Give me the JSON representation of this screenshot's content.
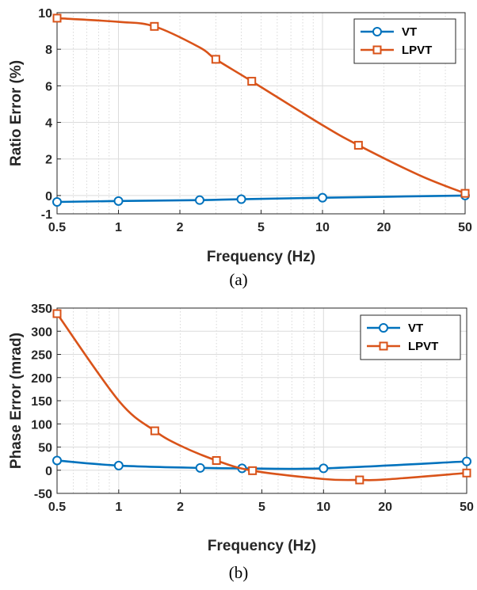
{
  "charts": [
    {
      "id": "a",
      "caption": "(a)",
      "chart_data": {
        "type": "line",
        "xscale": "log",
        "xlabel": "Frequency (Hz)",
        "ylabel": "Ratio Error (%)",
        "xlim": [
          0.5,
          50
        ],
        "ylim": [
          -1,
          10
        ],
        "xticks": [
          0.5,
          1,
          2,
          5,
          10,
          20,
          50
        ],
        "xtick_labels": [
          "0.5",
          "1",
          "2",
          "5",
          "10",
          "20",
          "50"
        ],
        "yticks": [
          -1,
          0,
          2,
          4,
          6,
          8,
          10
        ],
        "ytick_labels": [
          "-1",
          "0",
          "2",
          "4",
          "6",
          "8",
          "10"
        ],
        "grid": true,
        "legend": "top-right",
        "series": [
          {
            "name": "VT",
            "color": "#0072BD",
            "marker": "circle",
            "x": [
              0.5,
              1,
              2.5,
              4,
              10,
              50
            ],
            "y": [
              -0.35,
              -0.3,
              -0.25,
              -0.2,
              -0.12,
              0.0
            ]
          },
          {
            "name": "LPVT",
            "color": "#D95319",
            "marker": "square",
            "x": [
              0.5,
              1,
              1.5,
              2.5,
              3,
              4.5,
              10,
              15,
              30,
              50
            ],
            "y": [
              9.7,
              9.5,
              9.25,
              8.1,
              7.45,
              6.25,
              3.85,
              2.75,
              1.1,
              0.12
            ],
            "marker_x": [
              0.5,
              1.5,
              3,
              4.5,
              15,
              50
            ]
          }
        ]
      }
    },
    {
      "id": "b",
      "caption": "(b)",
      "chart_data": {
        "type": "line",
        "xscale": "log",
        "xlabel": "Frequency (Hz)",
        "ylabel": "Phase Error (mrad)",
        "xlim": [
          0.5,
          50
        ],
        "ylim": [
          -50,
          350
        ],
        "xticks": [
          0.5,
          1,
          2,
          5,
          10,
          20,
          50
        ],
        "xtick_labels": [
          "0.5",
          "1",
          "2",
          "5",
          "10",
          "20",
          "50"
        ],
        "yticks": [
          -50,
          0,
          50,
          100,
          150,
          200,
          250,
          300,
          350
        ],
        "ytick_labels": [
          "-50",
          "0",
          "50",
          "100",
          "150",
          "200",
          "250",
          "300",
          "350"
        ],
        "grid": true,
        "legend": "top-right",
        "series": [
          {
            "name": "VT",
            "color": "#0072BD",
            "marker": "circle",
            "x": [
              0.5,
              1,
              2.5,
              4,
              10,
              50
            ],
            "y": [
              21,
              10,
              5,
              4,
              4,
              19
            ]
          },
          {
            "name": "LPVT",
            "color": "#D95319",
            "marker": "square",
            "x": [
              0.5,
              1,
              1.5,
              2,
              3,
              4.5,
              10,
              15,
              20,
              50
            ],
            "y": [
              338,
              150,
              85,
              53,
              21,
              -1,
              -19,
              -21,
              -20,
              -6
            ],
            "marker_x": [
              0.5,
              1.5,
              3,
              4.5,
              15,
              50
            ]
          }
        ]
      }
    }
  ]
}
